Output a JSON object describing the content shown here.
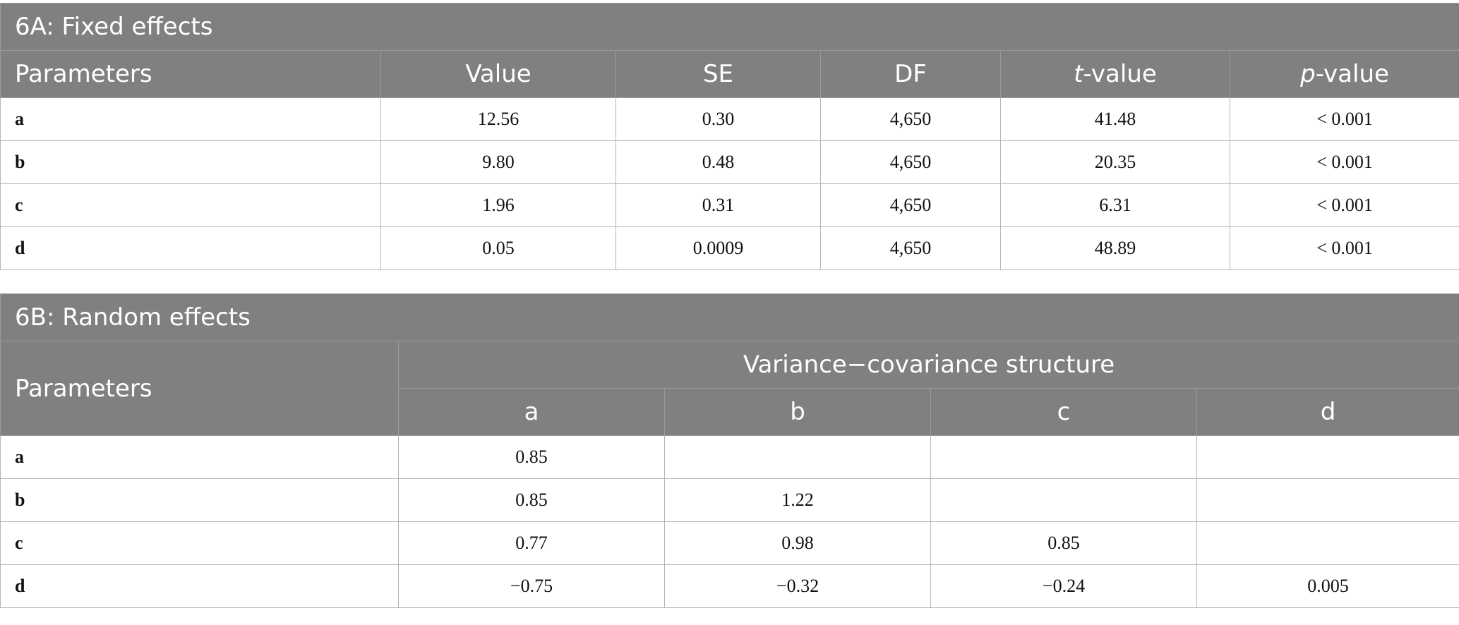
{
  "table_a": {
    "title": "6A: Fixed effects",
    "headers": {
      "parameters": "Parameters",
      "value": "Value",
      "se": "SE",
      "df": "DF",
      "t_italic": "t",
      "t_rest": "-value",
      "p_italic": "p",
      "p_rest": "-value"
    },
    "rows": [
      {
        "param": "a",
        "value": "12.56",
        "se": "0.30",
        "df": "4,650",
        "t": "41.48",
        "p": "< 0.001"
      },
      {
        "param": "b",
        "value": "9.80",
        "se": "0.48",
        "df": "4,650",
        "t": "20.35",
        "p": "< 0.001"
      },
      {
        "param": "c",
        "value": "1.96",
        "se": "0.31",
        "df": "4,650",
        "t": "6.31",
        "p": "< 0.001"
      },
      {
        "param": "d",
        "value": "0.05",
        "se": "0.0009",
        "df": "4,650",
        "t": "48.89",
        "p": "< 0.001"
      }
    ]
  },
  "table_b": {
    "title": "6B: Random effects",
    "headers": {
      "parameters": "Parameters",
      "group": "Variance−covariance structure",
      "cols": [
        "a",
        "b",
        "c",
        "d"
      ]
    },
    "rows": [
      {
        "param": "a",
        "cells": [
          "0.85",
          "",
          "",
          ""
        ]
      },
      {
        "param": "b",
        "cells": [
          "0.85",
          "1.22",
          "",
          ""
        ]
      },
      {
        "param": "c",
        "cells": [
          "0.77",
          "0.98",
          "0.85",
          ""
        ]
      },
      {
        "param": "d",
        "cells": [
          "−0.75",
          "−0.32",
          "−0.24",
          "0.005"
        ]
      }
    ]
  }
}
